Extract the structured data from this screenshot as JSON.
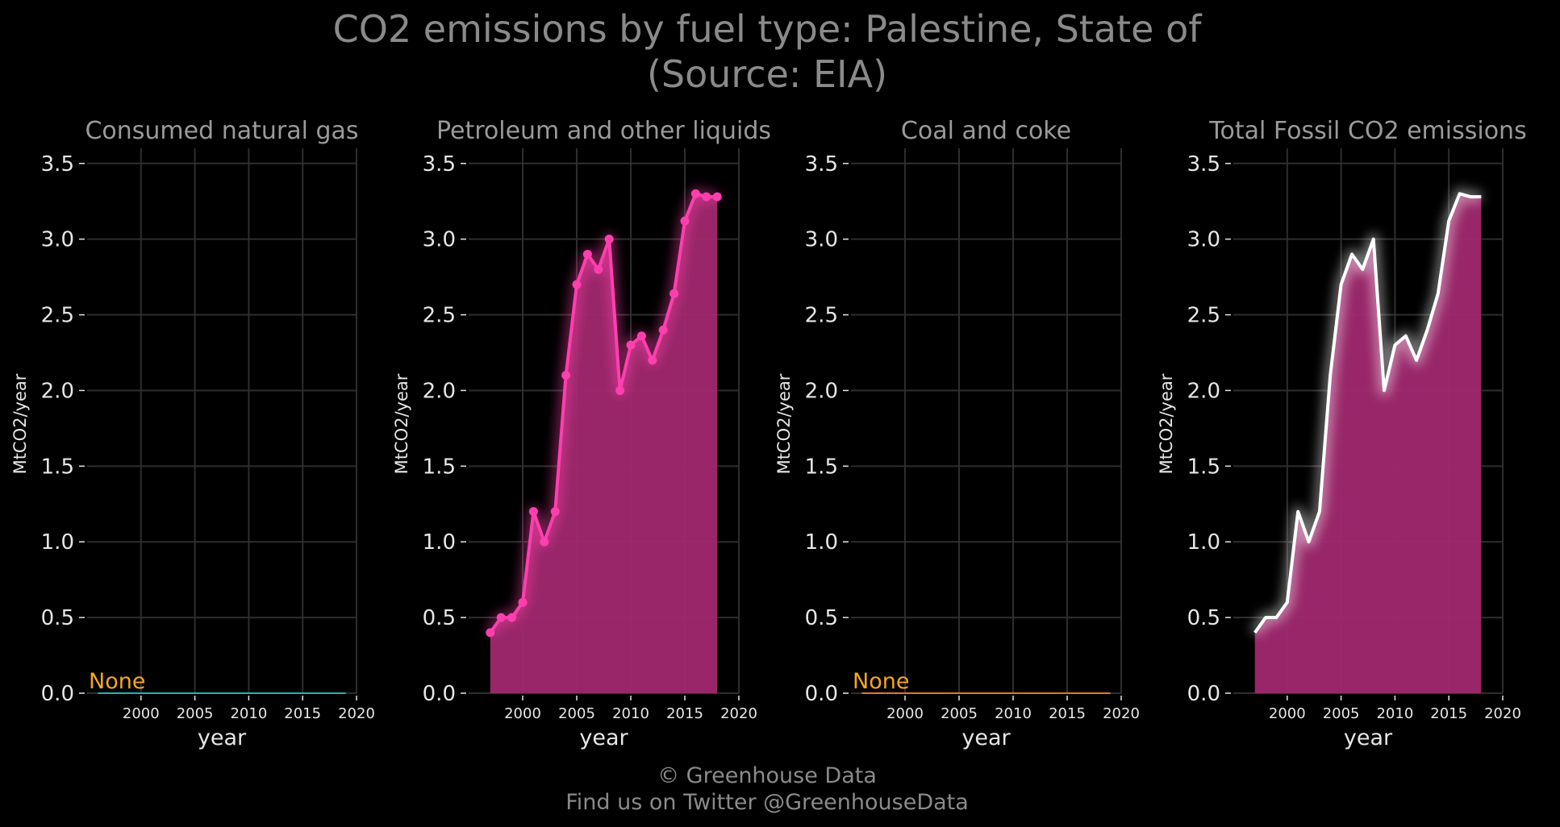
{
  "chart": {
    "title": "CO2 emissions by fuel type: Palestine, State of",
    "subtitle": "(Source: EIA)",
    "footer_line1": "© Greenhouse Data",
    "footer_line2": "Find us on Twitter @GreenhouseData"
  },
  "chart_data": [
    {
      "type": "line",
      "title": "Consumed natural gas",
      "xlabel": "year",
      "ylabel": "MtCO2/year",
      "xlim": [
        1995,
        2020
      ],
      "ylim": [
        0,
        3.6
      ],
      "xticks": [
        "2000",
        "2005",
        "2010",
        "2015",
        "2020"
      ],
      "yticks": [
        "0.0",
        "0.5",
        "1.0",
        "1.5",
        "2.0",
        "2.5",
        "3.0",
        "3.5"
      ],
      "grid": true,
      "annotation": "None",
      "line_color": "#1fb5b5",
      "annotation_color": "#f5a623",
      "series": [
        {
          "x": [
            1996,
            2019
          ],
          "values": [
            0,
            0
          ]
        }
      ]
    },
    {
      "type": "area",
      "title": "Petroleum and other liquids",
      "xlabel": "year",
      "ylabel": "MtCO2/year",
      "xlim": [
        1995,
        2020
      ],
      "ylim": [
        0,
        3.6
      ],
      "xticks": [
        "2000",
        "2005",
        "2010",
        "2015",
        "2020"
      ],
      "yticks": [
        "0.0",
        "0.5",
        "1.0",
        "1.5",
        "2.0",
        "2.5",
        "3.0",
        "3.5"
      ],
      "grid": true,
      "line_color": "#ff3fae",
      "fill_color": "#a0286e",
      "markers": true,
      "series": [
        {
          "x": [
            1997,
            1998,
            1999,
            2000,
            2001,
            2002,
            2003,
            2004,
            2005,
            2006,
            2007,
            2008,
            2009,
            2010,
            2011,
            2012,
            2013,
            2014,
            2015,
            2016,
            2017,
            2018
          ],
          "values": [
            0.4,
            0.5,
            0.5,
            0.6,
            1.2,
            1.0,
            1.2,
            2.1,
            2.7,
            2.9,
            2.8,
            3.0,
            2.0,
            2.3,
            2.36,
            2.2,
            2.4,
            2.64,
            3.12,
            3.3,
            3.28,
            3.28
          ]
        }
      ]
    },
    {
      "type": "line",
      "title": "Coal and coke",
      "xlabel": "year",
      "ylabel": "MtCO2/year",
      "xlim": [
        1995,
        2020
      ],
      "ylim": [
        0,
        3.6
      ],
      "xticks": [
        "2000",
        "2005",
        "2010",
        "2015",
        "2020"
      ],
      "yticks": [
        "0.0",
        "0.5",
        "1.0",
        "1.5",
        "2.0",
        "2.5",
        "3.0",
        "3.5"
      ],
      "grid": true,
      "annotation": "None",
      "line_color": "#e07a1f",
      "annotation_color": "#f5a623",
      "series": [
        {
          "x": [
            1996,
            2019
          ],
          "values": [
            0,
            0
          ]
        }
      ]
    },
    {
      "type": "area",
      "title": "Total Fossil CO2 emissions",
      "xlabel": "year",
      "ylabel": "MtCO2/year",
      "xlim": [
        1995,
        2020
      ],
      "ylim": [
        0,
        3.6
      ],
      "xticks": [
        "2000",
        "2005",
        "2010",
        "2015",
        "2020"
      ],
      "yticks": [
        "0.0",
        "0.5",
        "1.0",
        "1.5",
        "2.0",
        "2.5",
        "3.0",
        "3.5"
      ],
      "grid": true,
      "line_color": "#ffffff",
      "fill_color": "#a0286e",
      "markers": false,
      "series": [
        {
          "x": [
            1997,
            1998,
            1999,
            2000,
            2001,
            2002,
            2003,
            2004,
            2005,
            2006,
            2007,
            2008,
            2009,
            2010,
            2011,
            2012,
            2013,
            2014,
            2015,
            2016,
            2017,
            2018
          ],
          "values": [
            0.4,
            0.5,
            0.5,
            0.6,
            1.2,
            1.0,
            1.2,
            2.1,
            2.7,
            2.9,
            2.8,
            3.0,
            2.0,
            2.3,
            2.36,
            2.2,
            2.4,
            2.64,
            3.12,
            3.3,
            3.28,
            3.28
          ]
        }
      ]
    }
  ]
}
